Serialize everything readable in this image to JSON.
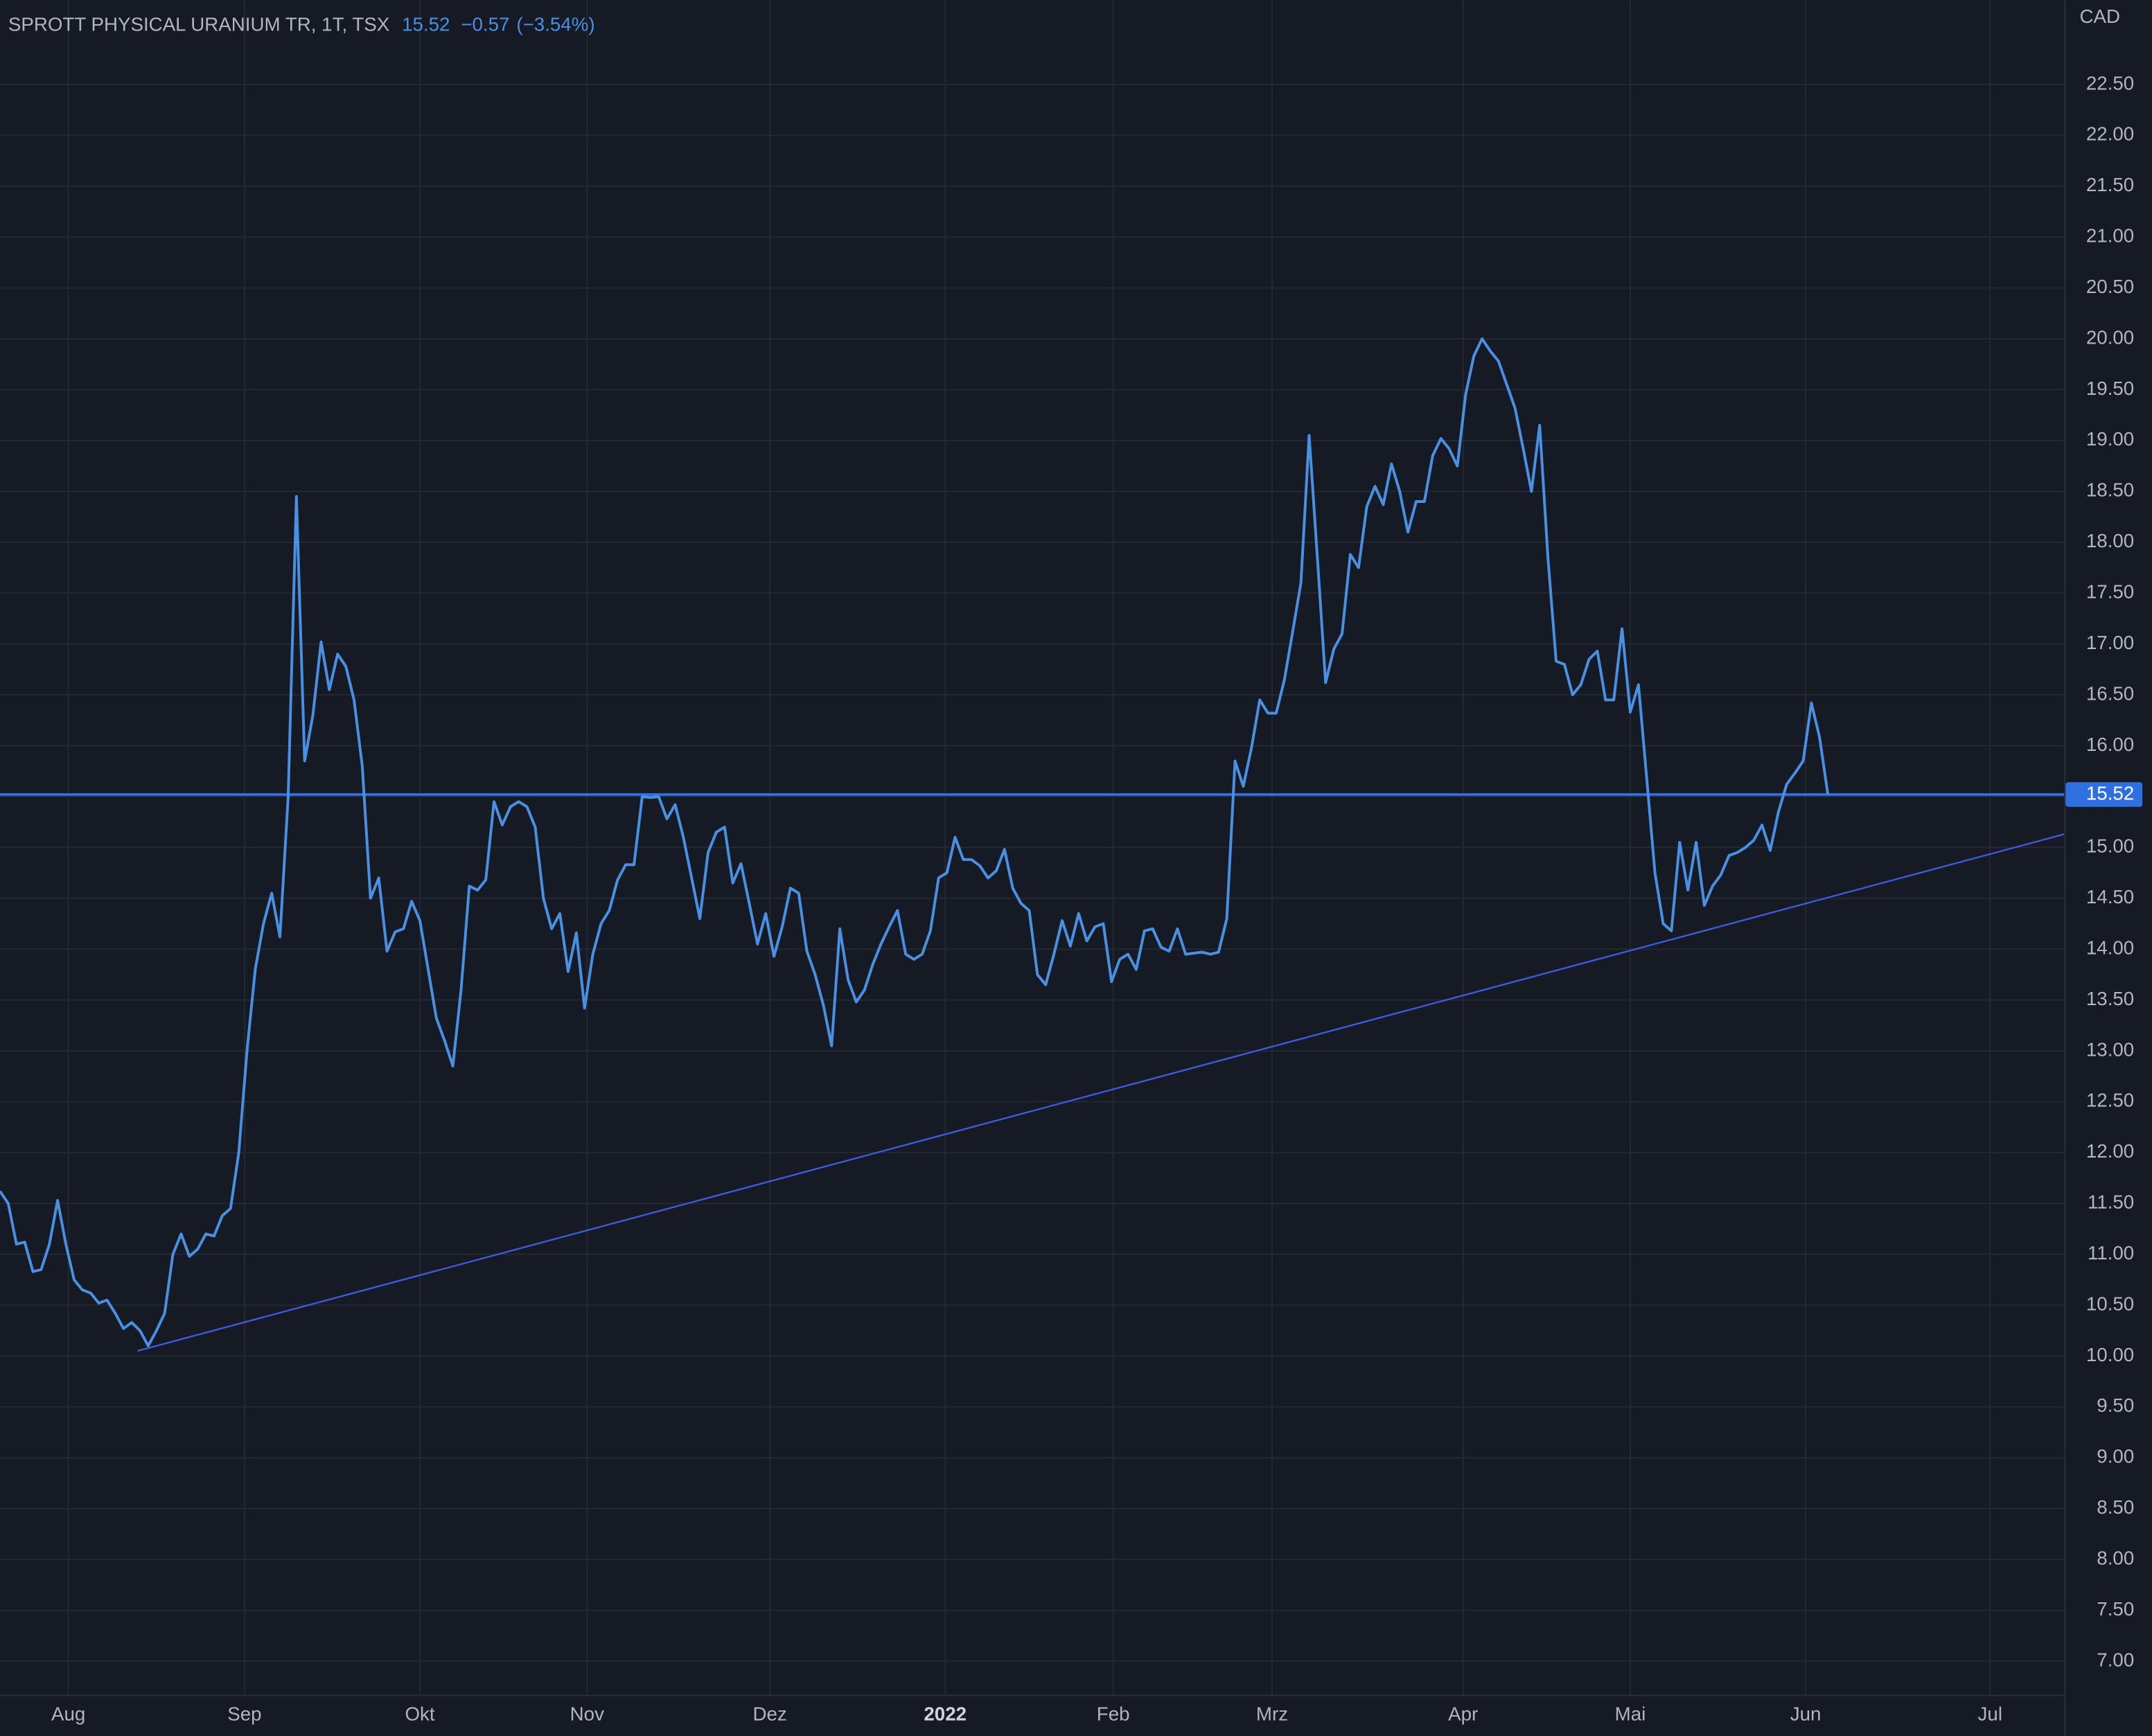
{
  "chart_data": {
    "type": "line",
    "title": "SPROTT PHYSICAL URANIUM TR, 1T, TSX",
    "last_price": 15.52,
    "change": "−0.57",
    "change_pct": "(−3.54%)",
    "y_unit": "CAD",
    "color": "#4a90e2",
    "grid": true,
    "ylim": [
      6.67,
      23.33
    ],
    "yticks": [
      {
        "value": 7,
        "label": "7.00"
      },
      {
        "value": 7.5,
        "label": "7.50"
      },
      {
        "value": 8,
        "label": "8.00"
      },
      {
        "value": 8.5,
        "label": "8.50"
      },
      {
        "value": 9,
        "label": "9.00"
      },
      {
        "value": 9.5,
        "label": "9.50"
      },
      {
        "value": 10,
        "label": "10.00"
      },
      {
        "value": 10.5,
        "label": "10.50"
      },
      {
        "value": 11,
        "label": "11.00"
      },
      {
        "value": 11.5,
        "label": "11.50"
      },
      {
        "value": 12,
        "label": "12.00"
      },
      {
        "value": 12.5,
        "label": "12.50"
      },
      {
        "value": 13,
        "label": "13.00"
      },
      {
        "value": 13.5,
        "label": "13.50"
      },
      {
        "value": 14,
        "label": "14.00"
      },
      {
        "value": 14.5,
        "label": "14.50"
      },
      {
        "value": 15,
        "label": "15.00"
      },
      {
        "value": 15.5,
        "label": "15.50"
      },
      {
        "value": 16,
        "label": "16.00"
      },
      {
        "value": 16.5,
        "label": "16.50"
      },
      {
        "value": 17,
        "label": "17.00"
      },
      {
        "value": 17.5,
        "label": "17.50"
      },
      {
        "value": 18,
        "label": "18.00"
      },
      {
        "value": 18.5,
        "label": "18.50"
      },
      {
        "value": 19,
        "label": "19.00"
      },
      {
        "value": 19.5,
        "label": "19.50"
      },
      {
        "value": 20,
        "label": "20.00"
      },
      {
        "value": 20.5,
        "label": "20.50"
      },
      {
        "value": 21,
        "label": "21.00"
      },
      {
        "value": 21.5,
        "label": "21.50"
      },
      {
        "value": 22,
        "label": "22.00"
      },
      {
        "value": 22.5,
        "label": "22.50"
      }
    ],
    "xlim": [
      0,
      250.7
    ],
    "xticks": [
      {
        "value": 8.3,
        "label": "Aug"
      },
      {
        "value": 29.7,
        "label": "Sep"
      },
      {
        "value": 51,
        "label": "Okt"
      },
      {
        "value": 71.3,
        "label": "Nov"
      },
      {
        "value": 93.5,
        "label": "Dez"
      },
      {
        "value": 114.8,
        "label": "2022"
      },
      {
        "value": 135.2,
        "label": "Feb"
      },
      {
        "value": 154.5,
        "label": "Mrz"
      },
      {
        "value": 177.7,
        "label": "Apr"
      },
      {
        "value": 198,
        "label": "Mai"
      },
      {
        "value": 219.3,
        "label": "Jun"
      },
      {
        "value": 241.7,
        "label": "Jul"
      }
    ],
    "values": [
      11.62,
      11.5,
      11.1,
      11.12,
      10.83,
      10.85,
      11.1,
      11.53,
      11.1,
      10.75,
      10.65,
      10.62,
      10.52,
      10.55,
      10.42,
      10.27,
      10.33,
      10.25,
      10.1,
      10.25,
      10.42,
      11.0,
      11.2,
      10.98,
      11.05,
      11.2,
      11.18,
      11.38,
      11.45,
      12.0,
      13.0,
      13.8,
      14.25,
      14.55,
      14.12,
      15.5,
      18.45,
      15.85,
      16.3,
      17.02,
      16.55,
      16.9,
      16.78,
      16.45,
      15.8,
      14.5,
      14.7,
      13.98,
      14.17,
      14.2,
      14.47,
      14.28,
      13.8,
      13.32,
      13.1,
      12.85,
      13.6,
      14.62,
      14.58,
      14.68,
      15.45,
      15.22,
      15.4,
      15.45,
      15.4,
      15.2,
      14.5,
      14.2,
      14.35,
      13.78,
      14.16,
      13.42,
      13.95,
      14.25,
      14.38,
      14.68,
      14.83,
      14.83,
      15.5,
      15.49,
      15.5,
      15.28,
      15.42,
      15.1,
      14.7,
      14.3,
      14.95,
      15.15,
      15.2,
      14.65,
      14.84,
      14.45,
      14.05,
      14.35,
      13.93,
      14.22,
      14.6,
      14.55,
      13.98,
      13.75,
      13.45,
      13.05,
      14.2,
      13.7,
      13.48,
      13.6,
      13.85,
      14.05,
      14.22,
      14.38,
      13.95,
      13.9,
      13.95,
      14.18,
      14.7,
      14.75,
      15.1,
      14.88,
      14.88,
      14.82,
      14.7,
      14.77,
      14.98,
      14.6,
      14.45,
      14.38,
      13.75,
      13.65,
      13.95,
      14.28,
      14.03,
      14.35,
      14.08,
      14.22,
      14.25,
      13.68,
      13.9,
      13.95,
      13.8,
      14.18,
      14.2,
      14.02,
      13.98,
      14.2,
      13.95,
      13.96,
      13.97,
      13.95,
      13.97,
      14.3,
      15.85,
      15.6,
      15.98,
      16.45,
      16.32,
      16.32,
      16.65,
      17.12,
      17.6,
      19.05,
      17.85,
      16.62,
      16.95,
      17.1,
      17.88,
      17.75,
      18.35,
      18.55,
      18.37,
      18.77,
      18.5,
      18.1,
      18.4,
      18.4,
      18.85,
      19.02,
      18.92,
      18.75,
      19.45,
      19.83,
      20.0,
      19.88,
      19.78,
      19.55,
      19.32,
      18.92,
      18.5,
      19.15,
      17.85,
      16.83,
      16.8,
      16.5,
      16.6,
      16.85,
      16.93,
      16.45,
      16.45,
      17.15,
      16.33,
      16.6,
      15.68,
      14.75,
      14.25,
      14.18,
      15.05,
      14.58,
      15.05,
      14.43,
      14.62,
      14.73,
      14.92,
      14.95,
      15.0,
      15.07,
      15.22,
      14.97,
      15.35,
      15.62,
      15.73,
      15.85,
      16.42,
      16.08,
      15.52
    ],
    "trendline": {
      "x": [
        16.7,
        250.7
      ],
      "values": [
        10.05,
        15.13
      ],
      "color": "#3d5bd9"
    },
    "price_line_color": "#2f6fe0"
  }
}
